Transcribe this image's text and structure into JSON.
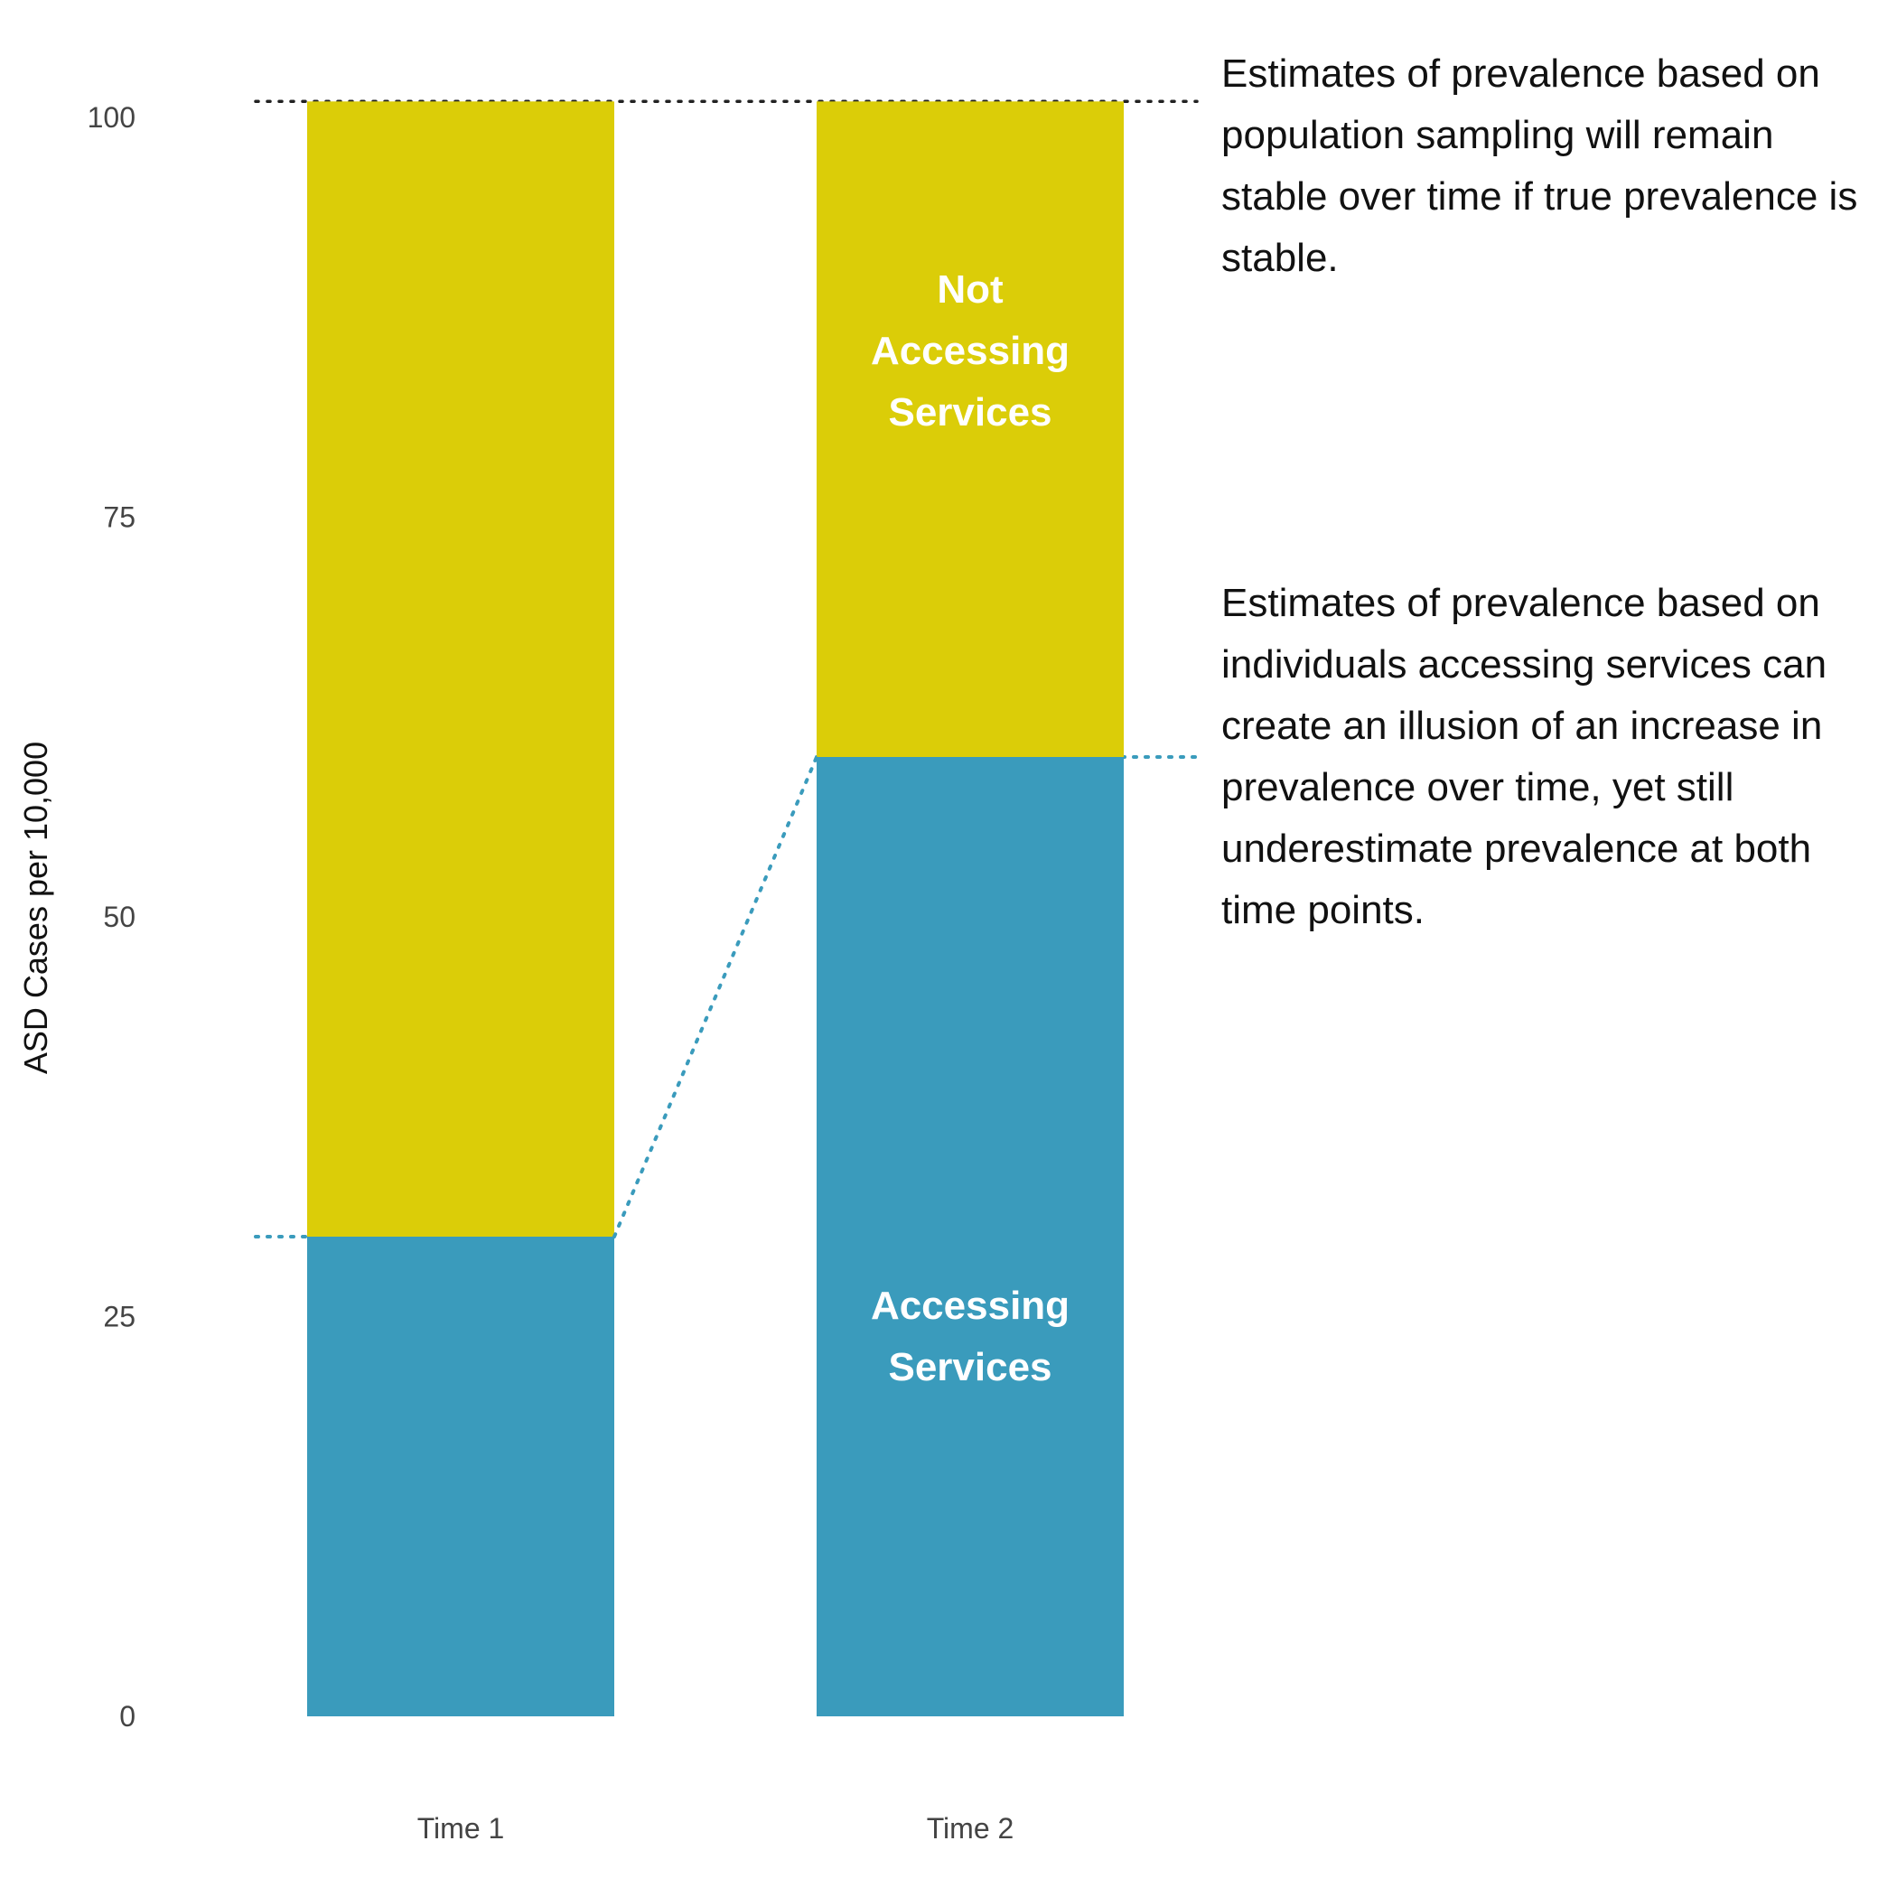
{
  "chart_data": {
    "type": "bar",
    "stacked": true,
    "categories": [
      "Time 1",
      "Time 2"
    ],
    "series": [
      {
        "name": "Accessing Services",
        "values": [
          30,
          60
        ],
        "color": "#3a9bbc"
      },
      {
        "name": "Not Accessing Services",
        "values": [
          71,
          41
        ],
        "color": "#dbcd08"
      }
    ],
    "ylabel": "ASD Cases per 10,000",
    "yticks": [
      0,
      25,
      50,
      75,
      100
    ],
    "ylim": [
      0,
      101
    ],
    "grid": false,
    "reference_lines": [
      {
        "value": 101,
        "style": "dotted",
        "color": "#222222"
      },
      {
        "value": 30,
        "style": "dotted",
        "color": "#3a9bbc"
      },
      {
        "value": 60,
        "style": "dotted",
        "color": "#3a9bbc"
      }
    ],
    "segment_labels": [
      {
        "category": "Time 2",
        "series": "Not Accessing Services",
        "lines": [
          "Not",
          "Accessing",
          "Services"
        ]
      },
      {
        "category": "Time 2",
        "series": "Accessing Services",
        "lines": [
          "Accessing",
          "Services"
        ]
      }
    ]
  },
  "annotations": [
    "Estimates of prevalence based on population sampling will remain stable over time if true prevalence is stable.",
    "Estimates of prevalence based on individuals accessing services can create an illusion of an increase in prevalence over time, yet still underestimate prevalence at both time points."
  ]
}
